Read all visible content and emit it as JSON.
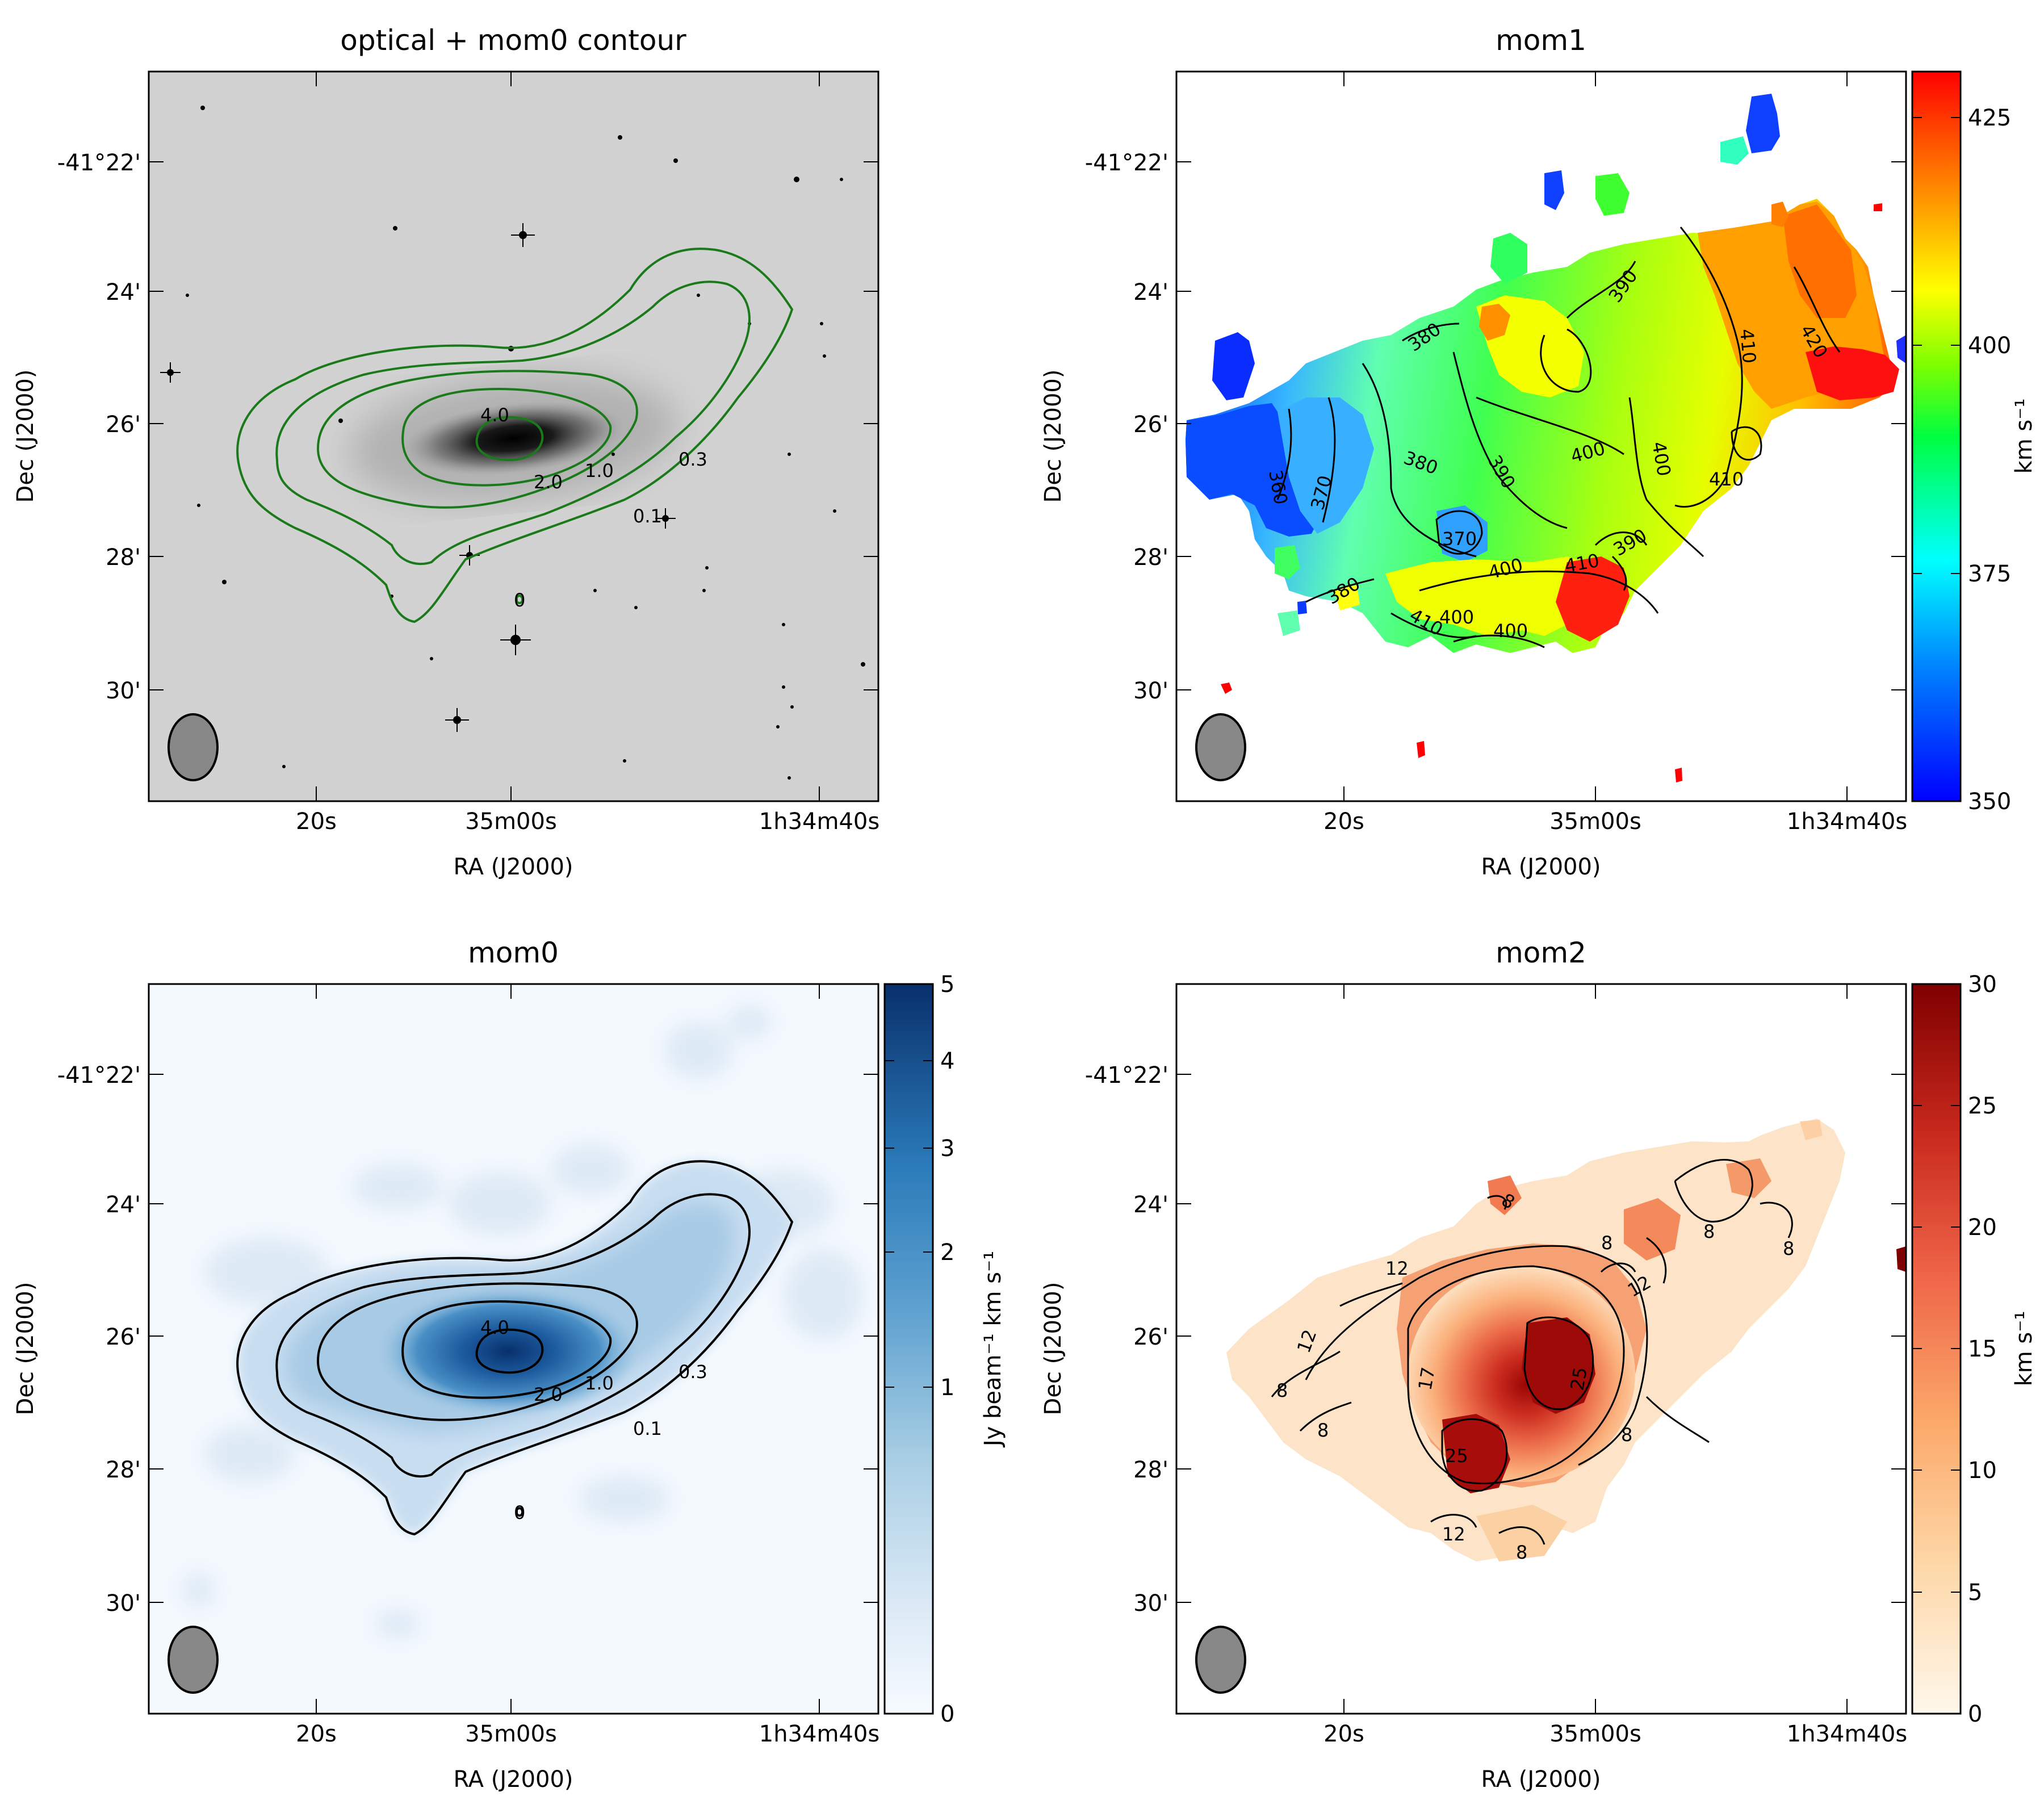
{
  "panels": [
    {
      "id": "optical",
      "title": "optical + mom0 contour",
      "xlabel": "RA (J2000)",
      "ylabel": "Dec (J2000)",
      "x_ticks": [
        "20s",
        "35m00s",
        "1h34m40s"
      ],
      "y_ticks": [
        "-41°22'",
        "24'",
        "26'",
        "28'",
        "30'"
      ],
      "contour_labels": [
        "4.0",
        "2.0",
        "1.0",
        "0.3",
        "0.1",
        "0"
      ]
    },
    {
      "id": "mom1",
      "title": "mom1",
      "xlabel": "RA (J2000)",
      "ylabel": "Dec (J2000)",
      "x_ticks": [
        "20s",
        "35m00s",
        "1h34m40s"
      ],
      "y_ticks": [
        "-41°22'",
        "24'",
        "26'",
        "28'",
        "30'"
      ],
      "contour_labels": [
        "360",
        "370",
        "370",
        "380",
        "380",
        "380",
        "390",
        "390",
        "390",
        "400",
        "400",
        "400",
        "400",
        "400",
        "410",
        "410",
        "410",
        "410",
        "420"
      ],
      "colorbar": {
        "label": "km s⁻¹",
        "ticks": [
          "350",
          "375",
          "400",
          "425"
        ],
        "range": [
          350,
          430
        ]
      }
    },
    {
      "id": "mom0",
      "title": "mom0",
      "xlabel": "RA (J2000)",
      "ylabel": "Dec (J2000)",
      "x_ticks": [
        "20s",
        "35m00s",
        "1h34m40s"
      ],
      "y_ticks": [
        "-41°22'",
        "24'",
        "26'",
        "28'",
        "30'"
      ],
      "contour_labels": [
        "4.0",
        "2.0",
        "1.0",
        "0.3",
        "0.1",
        "0"
      ],
      "colorbar": {
        "label": "Jy beam⁻¹ km s⁻¹",
        "ticks": [
          "0",
          "1",
          "2",
          "3",
          "4",
          "5"
        ],
        "range": [
          0,
          5
        ]
      }
    },
    {
      "id": "mom2",
      "title": "mom2",
      "xlabel": "RA (J2000)",
      "ylabel": "Dec (J2000)",
      "x_ticks": [
        "20s",
        "35m00s",
        "1h34m40s"
      ],
      "y_ticks": [
        "-41°22'",
        "24'",
        "26'",
        "28'",
        "30'"
      ],
      "contour_labels": [
        "8",
        "8",
        "8",
        "8",
        "8",
        "8",
        "8",
        "8",
        "12",
        "12",
        "12",
        "12",
        "17",
        "25",
        "25"
      ],
      "colorbar": {
        "label": "km s⁻¹",
        "ticks": [
          "0",
          "5",
          "10",
          "15",
          "20",
          "25",
          "30"
        ],
        "range": [
          0,
          30
        ]
      }
    }
  ],
  "chart_data": [
    {
      "type": "heatmap",
      "title": "optical + mom0 contour",
      "xlabel": "RA (J2000)",
      "ylabel": "Dec (J2000)",
      "x_ticks": [
        "20s",
        "35m00s",
        "1h34m40s"
      ],
      "y_ticks": [
        "-41°22'",
        "24'",
        "26'",
        "28'",
        "30'"
      ],
      "contour_levels": [
        0.1,
        0.3,
        1.0,
        2.0,
        4.0
      ],
      "colormap": "gray_r",
      "contour_color": "#1a7a1a"
    },
    {
      "type": "heatmap",
      "title": "mom1",
      "xlabel": "RA (J2000)",
      "ylabel": "Dec (J2000)",
      "colorbar_range": [
        350,
        430
      ],
      "colorbar_ticks": [
        350,
        375,
        400,
        425
      ],
      "colorbar_label": "km s⁻¹",
      "contour_levels": [
        360,
        370,
        380,
        390,
        400,
        410,
        420
      ],
      "colormap": "jet"
    },
    {
      "type": "heatmap",
      "title": "mom0",
      "xlabel": "RA (J2000)",
      "ylabel": "Dec (J2000)",
      "colorbar_range": [
        0,
        5
      ],
      "colorbar_ticks": [
        0,
        1,
        2,
        3,
        4,
        5
      ],
      "colorbar_scale": "sqrt",
      "colorbar_label": "Jy beam⁻¹ km s⁻¹",
      "contour_levels": [
        0.1,
        0.3,
        1.0,
        2.0,
        4.0
      ],
      "colormap": "Blues"
    },
    {
      "type": "heatmap",
      "title": "mom2",
      "xlabel": "RA (J2000)",
      "ylabel": "Dec (J2000)",
      "colorbar_range": [
        0,
        30
      ],
      "colorbar_ticks": [
        0,
        5,
        10,
        15,
        20,
        25,
        30
      ],
      "colorbar_label": "km s⁻¹",
      "contour_levels": [
        8,
        12,
        17,
        25
      ],
      "colormap": "OrRd"
    }
  ],
  "colors": {
    "beam": "#888888",
    "optical_contour": "#1a7a1a",
    "mom0_peak": "#08306b",
    "mom2_peak": "#7f0000"
  }
}
